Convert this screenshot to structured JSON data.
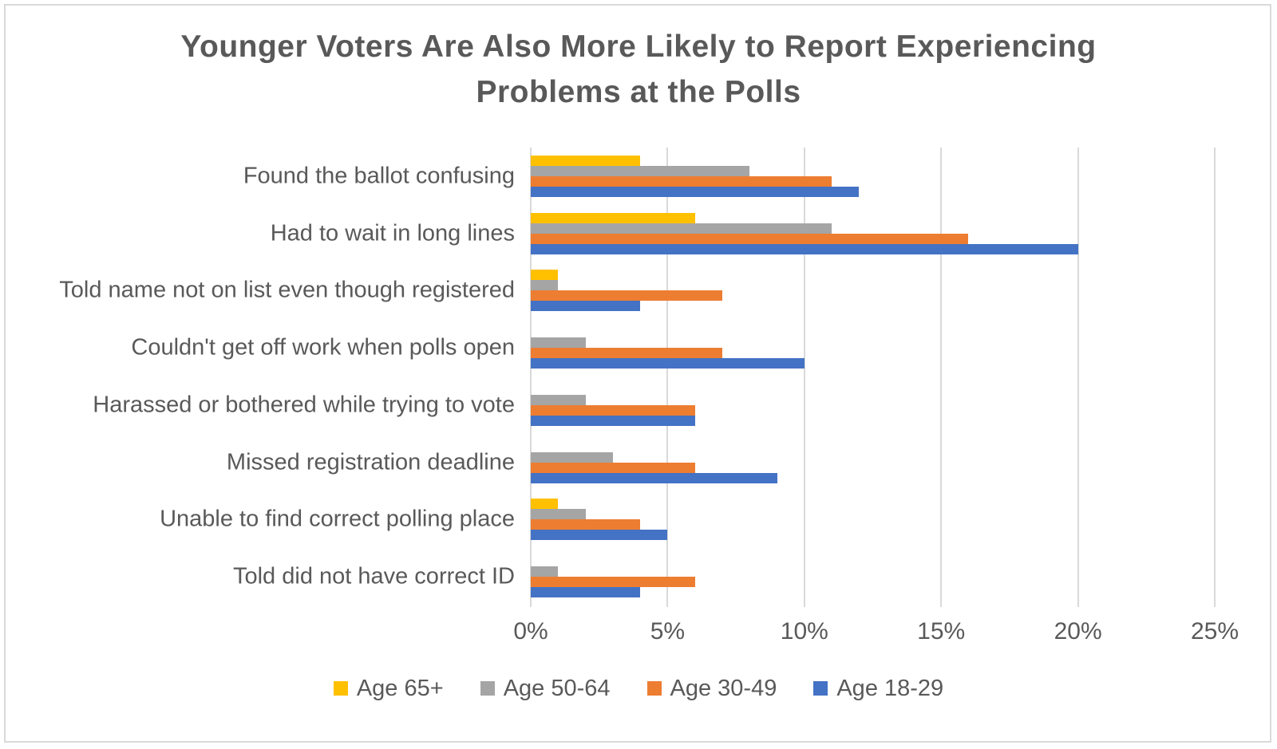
{
  "title": "Younger Voters Are Also More Likely to Report Experiencing\nProblems at the Polls",
  "colors": {
    "text": "#595959",
    "gridline": "#d9d9d9",
    "border": "#d9d9d9",
    "background": "#ffffff"
  },
  "chart_data": {
    "type": "bar",
    "orientation": "horizontal",
    "title": "Younger Voters Are Also More Likely to Report Experiencing Problems at the Polls",
    "xlabel": "",
    "ylabel": "",
    "units": "%",
    "xlim": [
      0,
      25
    ],
    "x_tick_values": [
      0,
      5,
      10,
      15,
      20,
      25
    ],
    "x_tick_labels": [
      "0%",
      "5%",
      "10%",
      "15%",
      "20%",
      "25%"
    ],
    "gridlines": true,
    "legend_position": "bottom",
    "categories": [
      "Found the ballot confusing",
      "Had to wait in long lines",
      "Told name not on list even though registered",
      "Couldn't get off work when polls open",
      "Harassed or bothered while trying to vote",
      "Missed registration deadline",
      "Unable to find correct polling place",
      "Told did not have correct ID"
    ],
    "series": [
      {
        "name": "Age 65+",
        "color": "#FFC000",
        "values": [
          4,
          6,
          1,
          0,
          0,
          0,
          1,
          0
        ]
      },
      {
        "name": "Age 50-64",
        "color": "#A5A5A5",
        "values": [
          8,
          11,
          1,
          2,
          2,
          3,
          2,
          1
        ]
      },
      {
        "name": "Age 30-49",
        "color": "#ED7D31",
        "values": [
          11,
          16,
          7,
          7,
          6,
          6,
          4,
          6
        ]
      },
      {
        "name": "Age 18-29",
        "color": "#4472C4",
        "values": [
          12,
          20,
          4,
          10,
          6,
          9,
          5,
          4
        ]
      }
    ]
  }
}
